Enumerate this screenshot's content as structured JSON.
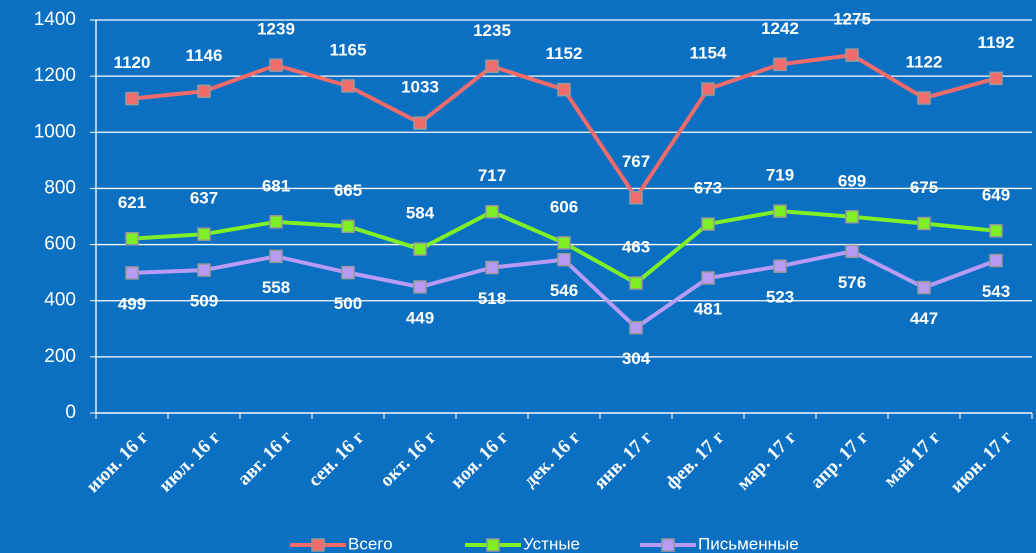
{
  "chart_data": {
    "type": "line",
    "categories": [
      "июн. 16 г",
      "июл. 16 г",
      "авг. 16 г",
      "сен. 16 г",
      "окт. 16 г",
      "ноя. 16 г",
      "дек. 16 г",
      "янв. 17 г",
      "фев. 17 г",
      "мар. 17 г",
      "апр. 17 г",
      "май 17 г",
      "июн. 17 г"
    ],
    "series": [
      {
        "name": "Всего",
        "color": "#f26b6b",
        "values": [
          1120,
          1146,
          1239,
          1165,
          1033,
          1235,
          1152,
          767,
          1154,
          1242,
          1275,
          1122,
          1192
        ]
      },
      {
        "name": "Устные",
        "color": "#7fef26",
        "values": [
          621,
          637,
          681,
          665,
          584,
          717,
          606,
          463,
          673,
          719,
          699,
          675,
          649
        ]
      },
      {
        "name": "Письменные",
        "color": "#b79bf5",
        "values": [
          499,
          509,
          558,
          500,
          449,
          518,
          546,
          304,
          481,
          523,
          576,
          447,
          543
        ]
      }
    ],
    "ylim": [
      0,
      1400
    ],
    "yticks": [
      0,
      200,
      400,
      600,
      800,
      1000,
      1200,
      1400
    ],
    "grid": true,
    "legend": "bottom"
  }
}
